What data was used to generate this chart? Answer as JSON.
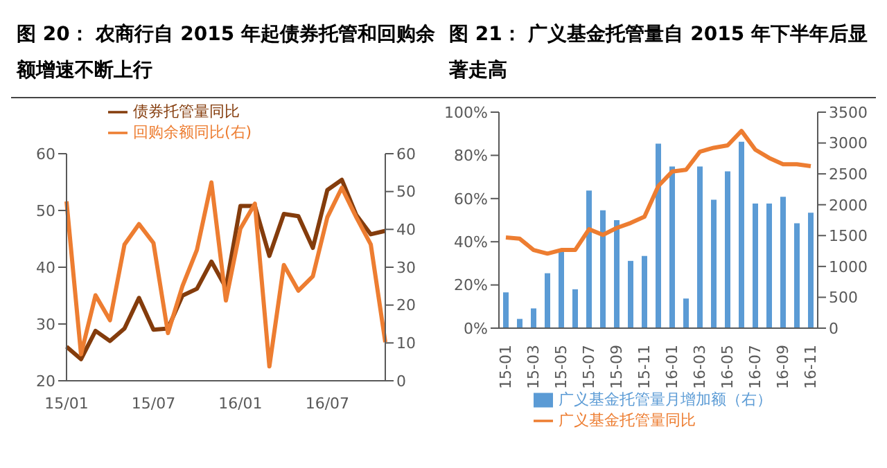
{
  "chart_data": [
    {
      "type": "line",
      "title": "图 20： 农商行自 2015 年起债券托管和回购余额增速不断上行",
      "categories": [
        "15/01",
        null,
        null,
        null,
        null,
        null,
        "15/07",
        null,
        null,
        null,
        null,
        null,
        "16/01",
        null,
        null,
        null,
        null,
        null,
        "16/07",
        null,
        null,
        null,
        null
      ],
      "ylim": [
        20,
        60
      ],
      "yticks": [
        20,
        30,
        40,
        50,
        60
      ],
      "y2lim": [
        0,
        60
      ],
      "y2ticks": [
        0,
        10,
        20,
        30,
        40,
        50,
        60
      ],
      "legend": "top",
      "grid": false,
      "series": [
        {
          "name": "债券托管量同比",
          "color": "#843c0c",
          "values": [
            26,
            23.8,
            28.8,
            27,
            29.2,
            34.6,
            29,
            29.2,
            35,
            36.2,
            41,
            36.4,
            50.8,
            50.8,
            42,
            49.4,
            49,
            43.4,
            53.6,
            55.4,
            49.2,
            45.8,
            46.4
          ]
        },
        {
          "name": "回购余额同比(右)",
          "color": "#ed7d31",
          "axis": "y2",
          "values": [
            47.4,
            7,
            22.6,
            16,
            36,
            41.4,
            36.4,
            12.6,
            25,
            34.6,
            52.4,
            21.2,
            40.2,
            46.8,
            3.8,
            30.6,
            23.8,
            27.6,
            43.2,
            51,
            43.2,
            36,
            10.2
          ]
        }
      ]
    },
    {
      "type": "bar",
      "title": "图 21： 广义基金托管量自 2015 年下半年后显著走高",
      "categories": [
        "15-01",
        null,
        "15-03",
        null,
        "15-05",
        null,
        "15-07",
        null,
        "15-09",
        null,
        "15-11",
        null,
        "16-01",
        null,
        "16-03",
        null,
        "16-05",
        null,
        "16-07",
        null,
        "16-09",
        null,
        "16-11"
      ],
      "ylim": [
        0,
        100
      ],
      "yticks": [
        {
          "value": 0,
          "label": "0%"
        },
        {
          "value": 20,
          "label": "20%"
        },
        {
          "value": 40,
          "label": "40%"
        },
        {
          "value": 60,
          "label": "60%"
        },
        {
          "value": 80,
          "label": "80%"
        },
        {
          "value": 100,
          "label": "100%"
        }
      ],
      "y2lim": [
        0,
        3500
      ],
      "y2ticks": [
        0,
        500,
        1000,
        1500,
        2000,
        2500,
        3000,
        3500
      ],
      "legend": "bottom",
      "grid": false,
      "series": [
        {
          "name": "广义基金托管量月增加额（右）",
          "color": "#5b9bd5",
          "axis": "y2",
          "values": [
            580,
            150,
            320,
            890,
            1270,
            630,
            2230,
            1910,
            1750,
            1090,
            1170,
            2990,
            2620,
            480,
            2620,
            2080,
            2540,
            3020,
            2020,
            2020,
            2130,
            1700,
            1870
          ]
        },
        {
          "name": "广义基金托管量同比",
          "type": "line",
          "color": "#ed7d31",
          "values": [
            42,
            41.4,
            36.2,
            34.5,
            36.2,
            36.2,
            45.8,
            43.2,
            46.4,
            48.7,
            51.6,
            65.8,
            72.5,
            73.3,
            81.7,
            83.5,
            84.6,
            91.3,
            82.6,
            78.8,
            75.9,
            75.9,
            75
          ]
        }
      ]
    }
  ]
}
